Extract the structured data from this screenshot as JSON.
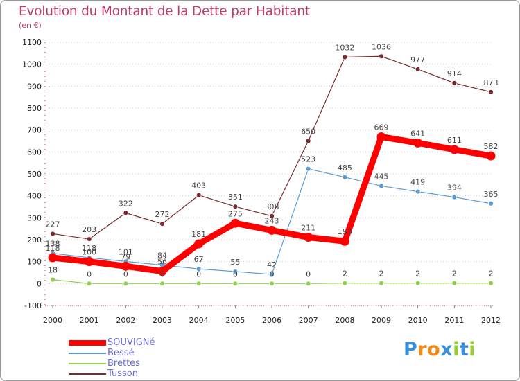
{
  "title": "Evolution du Montant de la Dette par Habitant",
  "subtitle": "(en €)",
  "logo": {
    "text": "Proxiti",
    "letters": [
      "P",
      "r",
      "o",
      "x",
      "i",
      "t",
      "i"
    ],
    "colors": [
      "#3a8fd9",
      "#f28a1a",
      "#f28a1a",
      "#3a8fd9",
      "#9acd32",
      "#3a8fd9",
      "#9acd32"
    ]
  },
  "chart_data": {
    "type": "line",
    "title": "Evolution du Montant de la Dette par Habitant",
    "ylabel": "(en €)",
    "x": [
      "2000",
      "2001",
      "2002",
      "2003",
      "2004",
      "2005",
      "2006",
      "2007",
      "2008",
      "2009",
      "2010",
      "2011",
      "2012"
    ],
    "ylim": [
      -100,
      1100
    ],
    "yticks": [
      -100,
      0,
      100,
      200,
      300,
      400,
      500,
      600,
      700,
      800,
      900,
      1000,
      1100
    ],
    "legend_position": "bottom-left",
    "series": [
      {
        "name": "SOUVIGNé",
        "color": "#ff0000",
        "values": [
          118,
          100,
          79,
          56,
          181,
          275,
          243,
          211,
          193,
          669,
          641,
          611,
          582
        ]
      },
      {
        "name": "Bessé",
        "color": "#5b9bd5",
        "values": [
          138,
          118,
          101,
          84,
          67,
          55,
          42,
          523,
          485,
          445,
          419,
          394,
          365
        ]
      },
      {
        "name": "Brettes",
        "color": "#8fd14f",
        "values": [
          18,
          0,
          0,
          0,
          0,
          0,
          0,
          0,
          2,
          2,
          2,
          2,
          2
        ]
      },
      {
        "name": "Tusson",
        "color": "#7a2a2a",
        "values": [
          227,
          203,
          322,
          272,
          403,
          351,
          308,
          650,
          1032,
          1036,
          977,
          914,
          873
        ]
      }
    ]
  }
}
